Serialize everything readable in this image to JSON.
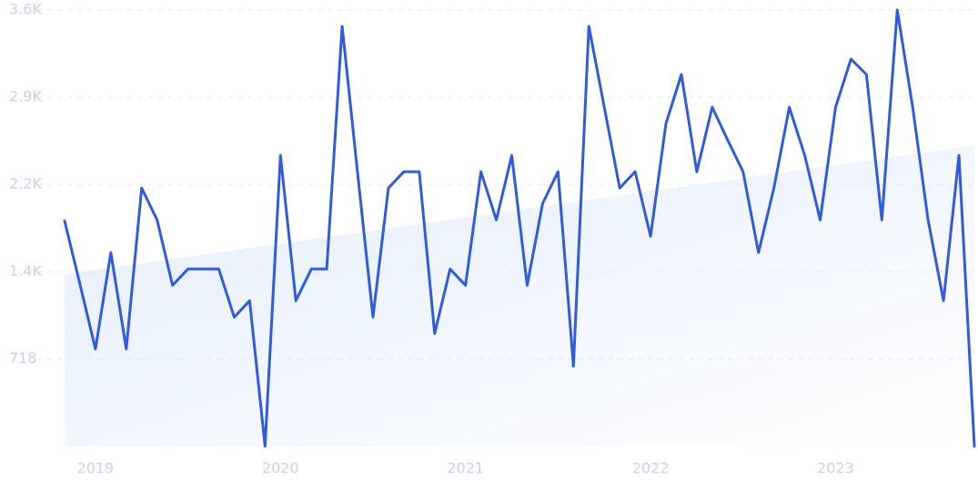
{
  "chart_data": {
    "type": "line",
    "categories": [
      null,
      null,
      "2019",
      null,
      null,
      null,
      null,
      null,
      null,
      null,
      null,
      null,
      null,
      null,
      "2020",
      null,
      null,
      null,
      null,
      null,
      null,
      null,
      null,
      null,
      null,
      null,
      "2021",
      null,
      null,
      null,
      null,
      null,
      null,
      null,
      null,
      null,
      null,
      null,
      "2022",
      null,
      null,
      null,
      null,
      null,
      null,
      null,
      null,
      null,
      null,
      null,
      "2023",
      null,
      null,
      null,
      null,
      null,
      null,
      null,
      null,
      null
    ],
    "values": [
      1855,
      1331,
      800,
      1593,
      800,
      2124,
      1862,
      1324,
      1458,
      1458,
      1458,
      1062,
      1197,
      0,
      2393,
      1197,
      1458,
      1458,
      3455,
      2251,
      1062,
      2124,
      2259,
      2259,
      927,
      1458,
      1324,
      2259,
      1862,
      2393,
      1324,
      1997,
      2259,
      658,
      3455,
      2790,
      2124,
      2259,
      1728,
      2655,
      3059,
      2259,
      2790,
      2520,
      2259,
      1593,
      2124,
      2790,
      2393,
      1862,
      2790,
      3186,
      3059,
      1862,
      3590,
      2790,
      1862,
      1197,
      2393,
      0
    ],
    "color": "#2f5bdc",
    "trend": [
      1414,
      2476
    ],
    "trend_color": "#e3edfb",
    "ylim": [
      0,
      3590
    ],
    "yticks": [
      718,
      {
        "value": 1436,
        "label": "1.4K"
      },
      {
        "value": 2154,
        "label": "2.2K"
      },
      {
        "value": 2872,
        "label": "2.9K"
      },
      {
        "value": 3590,
        "label": "3.6K"
      }
    ],
    "grid": true
  }
}
